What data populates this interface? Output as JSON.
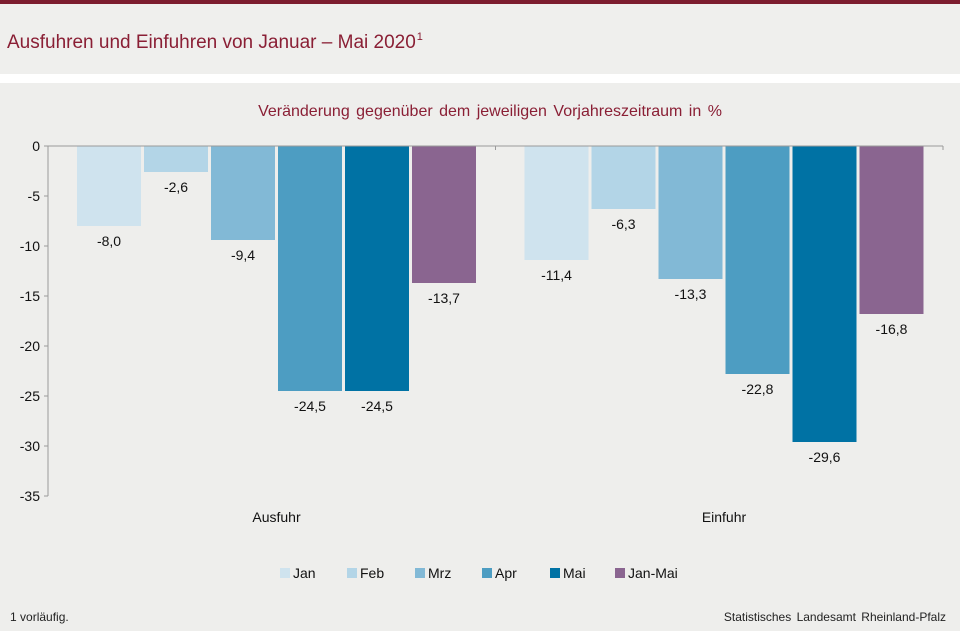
{
  "header": {
    "title": "Ausfuhren und Einfuhren von Januar – Mai 2020",
    "title_footnote_mark": "1"
  },
  "footer": {
    "footnote_mark": "1",
    "footnote_text": "vorläufig.",
    "source": "Statistisches Landesamt Rheinland-Pfalz"
  },
  "colors": {
    "title": "#8a1f35",
    "accent_rule": "#7c1c2e",
    "Jan": "#cfe3ee",
    "Feb": "#b3d5e7",
    "Mrz": "#82b9d6",
    "Apr": "#4d9dc2",
    "Mai": "#0072a4",
    "Jan-Mai": "#8a6590"
  },
  "chart_data": {
    "type": "bar",
    "title": "Veränderung gegenüber dem jeweiligen Vorjahreszeitraum in %",
    "categories": [
      "Ausfuhr",
      "Einfuhr"
    ],
    "series": [
      {
        "name": "Jan",
        "values": [
          -8.0,
          -11.4
        ],
        "labels": [
          "-8,0",
          "-11,4"
        ]
      },
      {
        "name": "Feb",
        "values": [
          -2.6,
          -6.3
        ],
        "labels": [
          "-2,6",
          "-6,3"
        ]
      },
      {
        "name": "Mrz",
        "values": [
          -9.4,
          -13.3
        ],
        "labels": [
          "-9,4",
          "-13,3"
        ]
      },
      {
        "name": "Apr",
        "values": [
          -24.5,
          -22.8
        ],
        "labels": [
          "-24,5",
          "-22,8"
        ]
      },
      {
        "name": "Mai",
        "values": [
          -24.5,
          -29.6
        ],
        "labels": [
          "-24,5",
          "-29,6"
        ]
      },
      {
        "name": "Jan-Mai",
        "values": [
          -13.7,
          -16.8
        ],
        "labels": [
          "-13,7",
          "-16,8"
        ]
      }
    ],
    "ylim": [
      -35,
      0
    ],
    "yticks": [
      0,
      -5,
      -10,
      -15,
      -20,
      -25,
      -30,
      -35
    ],
    "ytick_labels": [
      "0",
      "-5",
      "-10",
      "-15",
      "-20",
      "-25",
      "-30",
      "-35"
    ],
    "legend_position": "bottom",
    "grid": false
  }
}
